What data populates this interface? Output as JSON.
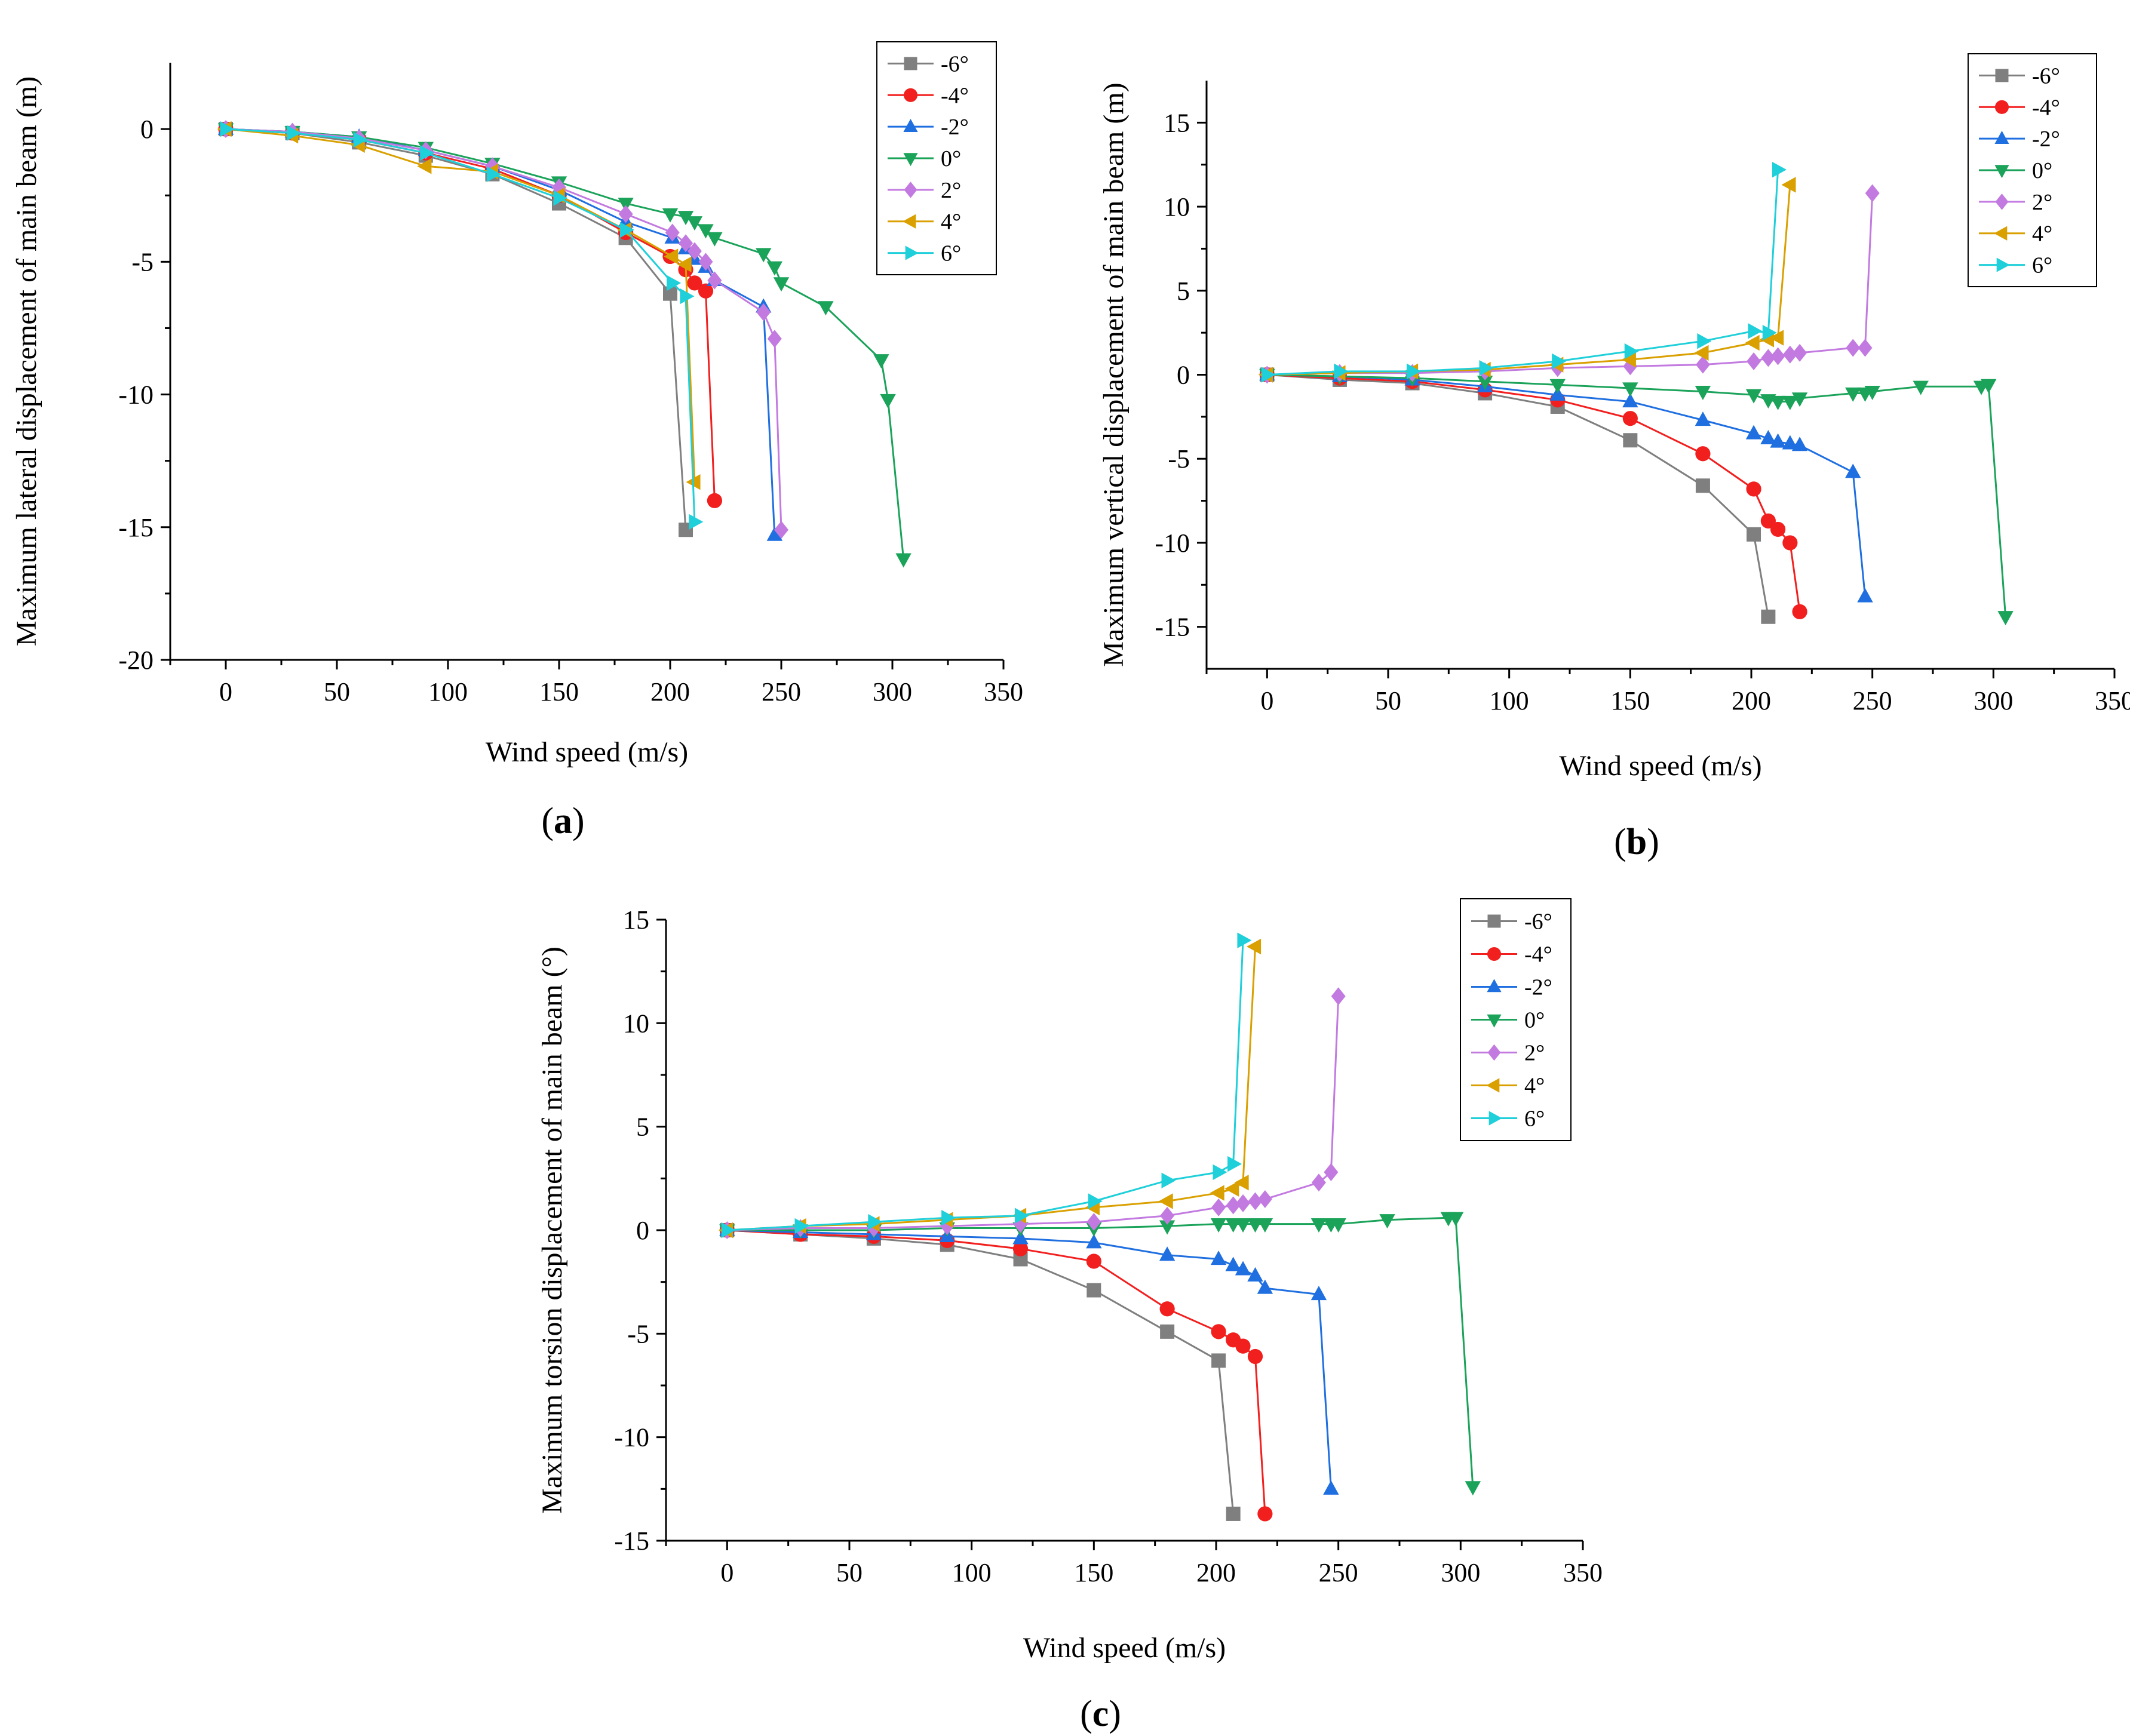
{
  "chart_data": [
    {
      "type": "line",
      "id": "a",
      "panel_label": "a",
      "xlabel": "Wind speed (m/s)",
      "ylabel": "Maximum lateral displacement of main beam (m)",
      "xlim": [
        -25,
        350
      ],
      "ylim": [
        -20,
        2.5
      ],
      "xticks": [
        0,
        50,
        100,
        150,
        200,
        250,
        300,
        350
      ],
      "yticks": [
        -20,
        -15,
        -10,
        -5,
        0
      ],
      "legend_position": "top-right",
      "series": [
        {
          "name": "-6°",
          "x": [
            0,
            30,
            60,
            90,
            120,
            150,
            180,
            200,
            207
          ],
          "y": [
            0,
            -0.15,
            -0.5,
            -1.0,
            -1.7,
            -2.8,
            -4.1,
            -6.2,
            -15.1
          ]
        },
        {
          "name": "-4°",
          "x": [
            0,
            30,
            60,
            90,
            120,
            150,
            180,
            200,
            207,
            211,
            216,
            220
          ],
          "y": [
            0,
            -0.15,
            -0.4,
            -0.9,
            -1.5,
            -2.5,
            -3.9,
            -4.8,
            -5.3,
            -5.8,
            -6.1,
            -14.0
          ]
        },
        {
          "name": "-2°",
          "x": [
            0,
            30,
            60,
            90,
            120,
            150,
            180,
            201,
            207,
            211,
            216,
            220,
            242,
            247
          ],
          "y": [
            0,
            -0.1,
            -0.3,
            -0.8,
            -1.4,
            -2.3,
            -3.5,
            -4.1,
            -4.5,
            -4.9,
            -5.2,
            -5.7,
            -6.7,
            -15.3
          ]
        },
        {
          "name": "0°",
          "x": [
            0,
            30,
            60,
            90,
            120,
            150,
            180,
            200,
            207,
            211,
            216,
            220,
            242,
            247,
            250,
            270,
            295,
            298,
            305
          ],
          "y": [
            0,
            -0.1,
            -0.3,
            -0.7,
            -1.3,
            -2.0,
            -2.8,
            -3.2,
            -3.3,
            -3.5,
            -3.8,
            -4.1,
            -4.7,
            -5.2,
            -5.8,
            -6.7,
            -8.7,
            -10.2,
            -16.2
          ]
        },
        {
          "name": "2°",
          "x": [
            0,
            30,
            60,
            90,
            120,
            150,
            180,
            201,
            207,
            211,
            216,
            220,
            242,
            247,
            250
          ],
          "y": [
            0,
            -0.1,
            -0.35,
            -0.8,
            -1.4,
            -2.2,
            -3.2,
            -3.9,
            -4.3,
            -4.6,
            -5.0,
            -5.7,
            -6.9,
            -7.9,
            -15.1
          ]
        },
        {
          "name": "4°",
          "x": [
            0,
            30,
            60,
            90,
            120,
            150,
            180,
            201,
            207,
            211
          ],
          "y": [
            0,
            -0.25,
            -0.6,
            -1.4,
            -1.6,
            -2.5,
            -3.8,
            -4.8,
            -5.1,
            -13.3
          ]
        },
        {
          "name": "6°",
          "x": [
            0,
            30,
            60,
            90,
            120,
            150,
            180,
            201,
            207,
            211
          ],
          "y": [
            0,
            -0.15,
            -0.4,
            -0.9,
            -1.7,
            -2.6,
            -3.8,
            -5.8,
            -6.3,
            -14.8
          ]
        }
      ]
    },
    {
      "type": "line",
      "id": "b",
      "panel_label": "b",
      "xlabel": "Wind speed (m/s)",
      "ylabel": "Maximum vertical displacement of main beam (m)",
      "xlim": [
        -25,
        350
      ],
      "ylim": [
        -17.5,
        17.5
      ],
      "xticks": [
        0,
        50,
        100,
        150,
        200,
        250,
        300,
        350
      ],
      "yticks": [
        -15,
        -10,
        -5,
        0,
        5,
        10,
        15
      ],
      "legend_position": "top-right",
      "series": [
        {
          "name": "-6°",
          "x": [
            0,
            30,
            60,
            90,
            120,
            150,
            180,
            201,
            207
          ],
          "y": [
            0,
            -0.3,
            -0.5,
            -1.1,
            -1.9,
            -3.9,
            -6.6,
            -9.5,
            -14.4
          ]
        },
        {
          "name": "-4°",
          "x": [
            0,
            30,
            60,
            90,
            120,
            150,
            180,
            201,
            207,
            211,
            216,
            220
          ],
          "y": [
            0,
            -0.2,
            -0.4,
            -0.9,
            -1.5,
            -2.6,
            -4.7,
            -6.8,
            -8.7,
            -9.2,
            -10.0,
            -14.1
          ]
        },
        {
          "name": "-2°",
          "x": [
            0,
            30,
            60,
            90,
            120,
            150,
            180,
            201,
            207,
            211,
            216,
            220,
            242,
            247
          ],
          "y": [
            0,
            -0.1,
            -0.3,
            -0.7,
            -1.2,
            -1.6,
            -2.7,
            -3.5,
            -3.8,
            -4.0,
            -4.1,
            -4.2,
            -5.8,
            -13.2
          ]
        },
        {
          "name": "0°",
          "x": [
            0,
            30,
            60,
            90,
            120,
            150,
            180,
            201,
            207,
            211,
            216,
            220,
            242,
            247,
            250,
            270,
            295,
            298,
            305
          ],
          "y": [
            0,
            -0.1,
            -0.2,
            -0.4,
            -0.6,
            -0.8,
            -1.0,
            -1.2,
            -1.5,
            -1.6,
            -1.6,
            -1.4,
            -1.1,
            -1.1,
            -1.0,
            -0.7,
            -0.7,
            -0.6,
            -14.4
          ]
        },
        {
          "name": "2°",
          "x": [
            0,
            30,
            60,
            90,
            120,
            150,
            180,
            201,
            207,
            211,
            216,
            220,
            242,
            247,
            250
          ],
          "y": [
            0,
            0.1,
            0.1,
            0.2,
            0.4,
            0.5,
            0.6,
            0.8,
            1.0,
            1.1,
            1.2,
            1.3,
            1.6,
            1.6,
            10.8
          ]
        },
        {
          "name": "4°",
          "x": [
            0,
            30,
            60,
            90,
            120,
            150,
            180,
            201,
            207,
            211,
            216
          ],
          "y": [
            0,
            0.1,
            0.2,
            0.3,
            0.6,
            0.9,
            1.3,
            1.9,
            2.1,
            2.2,
            11.3
          ]
        },
        {
          "name": "6°",
          "x": [
            0,
            30,
            60,
            90,
            120,
            150,
            180,
            201,
            207,
            211
          ],
          "y": [
            0,
            0.2,
            0.2,
            0.4,
            0.8,
            1.4,
            2.0,
            2.6,
            2.5,
            12.2
          ]
        }
      ]
    },
    {
      "type": "line",
      "id": "c",
      "panel_label": "c",
      "xlabel": "Wind speed (m/s)",
      "ylabel": "Maximum torsion displacement of main beam (°)",
      "xlim": [
        -25,
        350
      ],
      "ylim": [
        -15,
        15
      ],
      "xticks": [
        0,
        50,
        100,
        150,
        200,
        250,
        300,
        350
      ],
      "yticks": [
        -15,
        -10,
        -5,
        0,
        5,
        10,
        15
      ],
      "legend_position": "top-right",
      "series": [
        {
          "name": "-6°",
          "x": [
            0,
            30,
            60,
            90,
            120,
            150,
            180,
            201,
            207
          ],
          "y": [
            0,
            -0.2,
            -0.4,
            -0.7,
            -1.4,
            -2.9,
            -4.9,
            -6.3,
            -13.7
          ]
        },
        {
          "name": "-4°",
          "x": [
            0,
            30,
            60,
            90,
            120,
            150,
            180,
            201,
            207,
            211,
            216,
            220
          ],
          "y": [
            0,
            -0.2,
            -0.3,
            -0.5,
            -0.9,
            -1.5,
            -3.8,
            -4.9,
            -5.3,
            -5.6,
            -6.1,
            -13.7
          ]
        },
        {
          "name": "-2°",
          "x": [
            0,
            30,
            60,
            90,
            120,
            150,
            180,
            201,
            207,
            211,
            216,
            220,
            242,
            247
          ],
          "y": [
            0,
            -0.1,
            -0.2,
            -0.3,
            -0.4,
            -0.6,
            -1.2,
            -1.4,
            -1.7,
            -1.9,
            -2.2,
            -2.8,
            -3.1,
            -12.5
          ]
        },
        {
          "name": "0°",
          "x": [
            0,
            30,
            60,
            90,
            120,
            150,
            180,
            201,
            207,
            211,
            216,
            220,
            242,
            247,
            250,
            270,
            295,
            298,
            305
          ],
          "y": [
            0,
            0.0,
            0.0,
            0.1,
            0.1,
            0.1,
            0.2,
            0.3,
            0.3,
            0.3,
            0.3,
            0.3,
            0.3,
            0.3,
            0.3,
            0.5,
            0.6,
            0.6,
            -12.4
          ]
        },
        {
          "name": "2°",
          "x": [
            0,
            30,
            60,
            90,
            120,
            150,
            180,
            201,
            207,
            211,
            216,
            220,
            242,
            247,
            250
          ],
          "y": [
            0,
            0.1,
            0.1,
            0.2,
            0.3,
            0.4,
            0.7,
            1.1,
            1.2,
            1.3,
            1.4,
            1.5,
            2.3,
            2.8,
            11.3
          ]
        },
        {
          "name": "4°",
          "x": [
            0,
            30,
            60,
            90,
            120,
            150,
            180,
            201,
            207,
            211,
            216
          ],
          "y": [
            0,
            0.2,
            0.3,
            0.5,
            0.7,
            1.1,
            1.4,
            1.8,
            2.0,
            2.3,
            13.7
          ]
        },
        {
          "name": "6°",
          "x": [
            0,
            30,
            60,
            90,
            120,
            150,
            180,
            201,
            207,
            211
          ],
          "y": [
            0,
            0.2,
            0.4,
            0.6,
            0.7,
            1.4,
            2.4,
            2.8,
            3.2,
            14.0
          ]
        }
      ]
    }
  ],
  "colors": {
    "-6°": "#7f7f7f",
    "-4°": "#f21f1f",
    "-2°": "#1f6fe0",
    "0°": "#1ba35a",
    "2°": "#c27ae0",
    "4°": "#d9a000",
    "6°": "#1fcfd9"
  },
  "markers": {
    "-6°": "square",
    "-4°": "circle",
    "-2°": "triangle-up",
    "0°": "triangle-down",
    "2°": "diamond",
    "4°": "triangle-left",
    "6°": "triangle-right"
  }
}
